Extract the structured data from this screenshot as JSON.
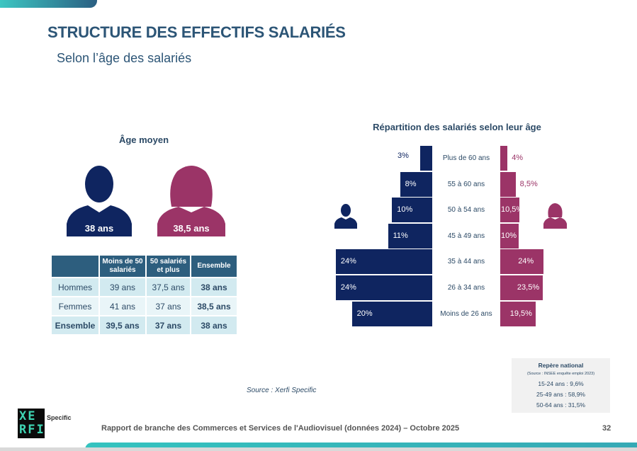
{
  "header": {
    "title": "STRUCTURE DES EFFECTIFS SALARIÉS",
    "subtitle": "Selon l’âge des salariés"
  },
  "age_moyen": {
    "title": "Âge moyen",
    "homme_label": "38 ans",
    "femme_label": "38,5 ans",
    "table": {
      "headers": [
        "",
        "Moins de 50 salariés",
        "50 salariés et plus",
        "Ensemble"
      ],
      "rows": [
        [
          "Hommes",
          "39 ans",
          "37,5 ans",
          "38 ans"
        ],
        [
          "Femmes",
          "41 ans",
          "37 ans",
          "38,5 ans"
        ],
        [
          "Ensemble",
          "39,5 ans",
          "37 ans",
          "38 ans"
        ]
      ]
    }
  },
  "chart_data": {
    "type": "bar",
    "title": "Répartition des salariés selon leur âge",
    "categories": [
      "Plus de 60 ans",
      "55 à 60 ans",
      "50 à 54 ans",
      "45 à 49 ans",
      "35 à 44 ans",
      "26 à 34 ans",
      "Moins de 26 ans"
    ],
    "series": [
      {
        "icon": "male-person-icon",
        "color": "#0f2560",
        "values": [
          3,
          8,
          10,
          11,
          24,
          24,
          20
        ],
        "labels": [
          "3%",
          "8%",
          "10%",
          "11%",
          "24%",
          "24%",
          "20%"
        ]
      },
      {
        "icon": "female-person-icon",
        "color": "#9b3467",
        "values": [
          4,
          8.5,
          10.5,
          10,
          24,
          23.5,
          19.5
        ],
        "labels": [
          "4%",
          "8,5%",
          "10,5%",
          "10%",
          "24%",
          "23,5%",
          "19,5%"
        ]
      }
    ]
  },
  "repere": {
    "title": "Repère national",
    "source": "(Source : INSEE enquête emploi 2023)",
    "lines": [
      "15-24 ans : 9,6%",
      "25-49 ans : 58,9%",
      "50-64 ans : 31,5%"
    ]
  },
  "source": "Source : Xerfi Specific",
  "footer": {
    "text": "Rapport de branche des Commerces et Services de l'Audiovisuel (données 2024) – Octobre 2025",
    "page": "32",
    "logo_text": "XERFI",
    "logo_sub": "Specific"
  }
}
